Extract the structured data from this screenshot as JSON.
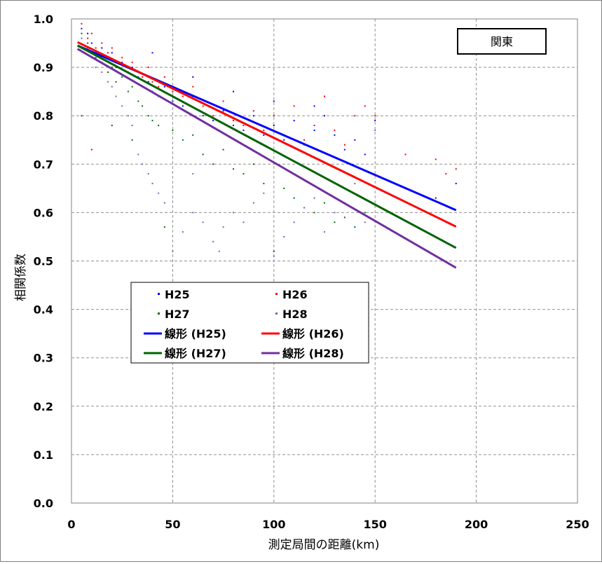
{
  "chart_data": {
    "type": "scatter",
    "region_label": "関東",
    "xlabel": "測定局間の距離(km)",
    "ylabel": "相関係数",
    "xlim": [
      0,
      250
    ],
    "ylim": [
      0,
      1.0
    ],
    "x_ticks": [
      "0",
      "50",
      "100",
      "150",
      "200",
      "250"
    ],
    "y_ticks": [
      "0.0",
      "0.1",
      "0.2",
      "0.3",
      "0.4",
      "0.5",
      "0.6",
      "0.7",
      "0.8",
      "0.9",
      "1.0"
    ],
    "grid": true,
    "legend_placement": "center-left",
    "series": [
      {
        "name": "H25",
        "kind": "scatter",
        "color": "#0000ff"
      },
      {
        "name": "H26",
        "kind": "scatter",
        "color": "#ff0000"
      },
      {
        "name": "H27",
        "kind": "scatter",
        "color": "#007000"
      },
      {
        "name": "H28",
        "kind": "scatter",
        "color": "#8060c0"
      },
      {
        "name": "線形 (H25)",
        "kind": "line",
        "color": "#0000ff",
        "x": [
          3,
          190
        ],
        "y": [
          0.945,
          0.605
        ]
      },
      {
        "name": "線形 (H26)",
        "kind": "line",
        "color": "#ff0000",
        "x": [
          3,
          190
        ],
        "y": [
          0.952,
          0.571
        ]
      },
      {
        "name": "線形 (H27)",
        "kind": "line",
        "color": "#006400",
        "x": [
          3,
          190
        ],
        "y": [
          0.945,
          0.527
        ]
      },
      {
        "name": "線形 (H28)",
        "kind": "line",
        "color": "#7030a0",
        "x": [
          3,
          190
        ],
        "y": [
          0.938,
          0.486
        ]
      }
    ],
    "scatter_points": {
      "H25": [
        [
          5,
          0.98
        ],
        [
          8,
          0.97
        ],
        [
          10,
          0.95
        ],
        [
          12,
          0.93
        ],
        [
          15,
          0.94
        ],
        [
          18,
          0.92
        ],
        [
          20,
          0.93
        ],
        [
          22,
          0.9
        ],
        [
          25,
          0.91
        ],
        [
          28,
          0.89
        ],
        [
          30,
          0.9
        ],
        [
          33,
          0.88
        ],
        [
          35,
          0.86
        ],
        [
          38,
          0.87
        ],
        [
          40,
          0.85
        ],
        [
          43,
          0.84
        ],
        [
          46,
          0.86
        ],
        [
          50,
          0.83
        ],
        [
          55,
          0.82
        ],
        [
          60,
          0.84
        ],
        [
          65,
          0.8
        ],
        [
          70,
          0.79
        ],
        [
          75,
          0.81
        ],
        [
          80,
          0.78
        ],
        [
          85,
          0.77
        ],
        [
          90,
          0.8
        ],
        [
          95,
          0.76
        ],
        [
          100,
          0.78
        ],
        [
          105,
          0.75
        ],
        [
          110,
          0.79
        ],
        [
          115,
          0.74
        ],
        [
          120,
          0.77
        ],
        [
          125,
          0.8
        ],
        [
          130,
          0.76
        ],
        [
          135,
          0.73
        ],
        [
          140,
          0.75
        ],
        [
          145,
          0.72
        ],
        [
          150,
          0.79
        ],
        [
          180,
          0.63
        ],
        [
          190,
          0.66
        ],
        [
          40,
          0.93
        ],
        [
          60,
          0.88
        ],
        [
          80,
          0.85
        ],
        [
          100,
          0.83
        ],
        [
          120,
          0.82
        ]
      ],
      "H26": [
        [
          5,
          0.99
        ],
        [
          8,
          0.96
        ],
        [
          10,
          0.97
        ],
        [
          12,
          0.94
        ],
        [
          15,
          0.95
        ],
        [
          18,
          0.93
        ],
        [
          20,
          0.94
        ],
        [
          22,
          0.91
        ],
        [
          25,
          0.92
        ],
        [
          28,
          0.9
        ],
        [
          30,
          0.91
        ],
        [
          33,
          0.89
        ],
        [
          35,
          0.88
        ],
        [
          38,
          0.9
        ],
        [
          40,
          0.87
        ],
        [
          43,
          0.86
        ],
        [
          46,
          0.88
        ],
        [
          50,
          0.85
        ],
        [
          55,
          0.84
        ],
        [
          60,
          0.86
        ],
        [
          65,
          0.82
        ],
        [
          70,
          0.8
        ],
        [
          75,
          0.83
        ],
        [
          80,
          0.79
        ],
        [
          85,
          0.78
        ],
        [
          90,
          0.81
        ],
        [
          95,
          0.77
        ],
        [
          100,
          0.8
        ],
        [
          105,
          0.76
        ],
        [
          110,
          0.82
        ],
        [
          115,
          0.75
        ],
        [
          120,
          0.78
        ],
        [
          125,
          0.84
        ],
        [
          130,
          0.77
        ],
        [
          135,
          0.74
        ],
        [
          140,
          0.8
        ],
        [
          145,
          0.82
        ],
        [
          150,
          0.8
        ],
        [
          165,
          0.72
        ],
        [
          180,
          0.71
        ],
        [
          185,
          0.68
        ],
        [
          190,
          0.69
        ],
        [
          10,
          0.73
        ]
      ],
      "H27": [
        [
          5,
          0.97
        ],
        [
          8,
          0.95
        ],
        [
          10,
          0.93
        ],
        [
          12,
          0.92
        ],
        [
          15,
          0.91
        ],
        [
          18,
          0.89
        ],
        [
          20,
          0.9
        ],
        [
          22,
          0.87
        ],
        [
          25,
          0.88
        ],
        [
          28,
          0.85
        ],
        [
          30,
          0.86
        ],
        [
          33,
          0.83
        ],
        [
          35,
          0.82
        ],
        [
          38,
          0.8
        ],
        [
          40,
          0.79
        ],
        [
          43,
          0.78
        ],
        [
          46,
          0.57
        ],
        [
          50,
          0.77
        ],
        [
          55,
          0.75
        ],
        [
          60,
          0.76
        ],
        [
          65,
          0.72
        ],
        [
          70,
          0.7
        ],
        [
          75,
          0.73
        ],
        [
          80,
          0.69
        ],
        [
          85,
          0.68
        ],
        [
          90,
          0.7
        ],
        [
          95,
          0.66
        ],
        [
          100,
          0.52
        ],
        [
          105,
          0.65
        ],
        [
          110,
          0.63
        ],
        [
          115,
          0.61
        ],
        [
          120,
          0.6
        ],
        [
          125,
          0.62
        ],
        [
          130,
          0.58
        ],
        [
          135,
          0.59
        ],
        [
          140,
          0.57
        ],
        [
          145,
          0.6
        ],
        [
          5,
          0.8
        ],
        [
          20,
          0.78
        ],
        [
          30,
          0.75
        ]
      ],
      "H28": [
        [
          5,
          0.96
        ],
        [
          8,
          0.94
        ],
        [
          10,
          0.92
        ],
        [
          12,
          0.9
        ],
        [
          15,
          0.89
        ],
        [
          18,
          0.87
        ],
        [
          20,
          0.86
        ],
        [
          22,
          0.84
        ],
        [
          25,
          0.82
        ],
        [
          28,
          0.8
        ],
        [
          30,
          0.78
        ],
        [
          33,
          0.72
        ],
        [
          35,
          0.7
        ],
        [
          38,
          0.68
        ],
        [
          40,
          0.66
        ],
        [
          43,
          0.64
        ],
        [
          46,
          0.62
        ],
        [
          50,
          0.52
        ],
        [
          55,
          0.56
        ],
        [
          60,
          0.6
        ],
        [
          65,
          0.58
        ],
        [
          70,
          0.54
        ],
        [
          73,
          0.52
        ],
        [
          75,
          0.57
        ],
        [
          80,
          0.6
        ],
        [
          85,
          0.58
        ],
        [
          90,
          0.62
        ],
        [
          95,
          0.64
        ],
        [
          100,
          0.51
        ],
        [
          105,
          0.55
        ],
        [
          110,
          0.58
        ],
        [
          115,
          0.61
        ],
        [
          120,
          0.63
        ],
        [
          125,
          0.56
        ],
        [
          130,
          0.6
        ],
        [
          135,
          0.62
        ],
        [
          140,
          0.66
        ],
        [
          145,
          0.58
        ],
        [
          150,
          0.77
        ],
        [
          60,
          0.68
        ]
      ]
    }
  }
}
